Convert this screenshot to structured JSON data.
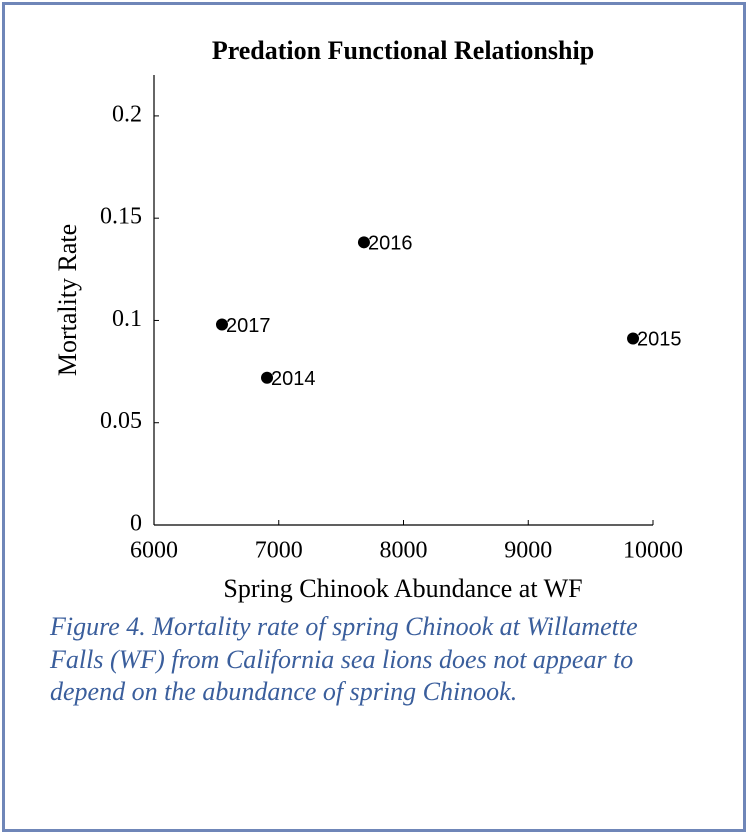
{
  "chart_data": {
    "type": "scatter",
    "title": "Predation Functional Relationship",
    "x_label": "Spring Chinook Abundance at WF",
    "y_label": "Mortality Rate",
    "x": [
      6906,
      9840,
      7683,
      6545
    ],
    "values": [
      0.072,
      0.0912,
      0.1382,
      0.098
    ],
    "point_labels": [
      "2014",
      "2015",
      "2016",
      "2017"
    ],
    "color": "#000000",
    "xlim": [
      6000,
      10000
    ],
    "xticks": [
      6000,
      7000,
      8000,
      9000,
      10000
    ],
    "ylim": [
      0,
      0.22
    ],
    "yticks": [
      0,
      0.05,
      0.1,
      0.15,
      0.2
    ]
  },
  "caption": "Figure 4. Mortality rate of spring Chinook at Willamette Falls (WF) from California sea lions does not appear to depend on the abundance of spring Chinook."
}
